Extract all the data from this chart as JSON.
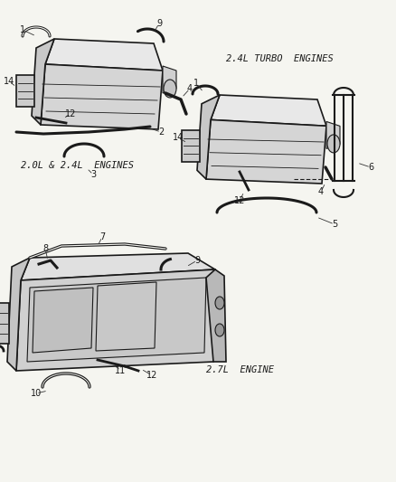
{
  "bg_color": "#f5f5f0",
  "line_color": "#1a1a1a",
  "label_color": "#1a1a1a",
  "diagram1_label": "2.0L & 2.4L  ENGINES",
  "diagram2_label": "2.4L TURBO  ENGINES",
  "diagram3_label": "2.7L  ENGINE",
  "fig_width": 4.38,
  "fig_height": 5.33,
  "dpi": 100,
  "callout_fontsize": 7.0,
  "label_fontsize": 7.5
}
